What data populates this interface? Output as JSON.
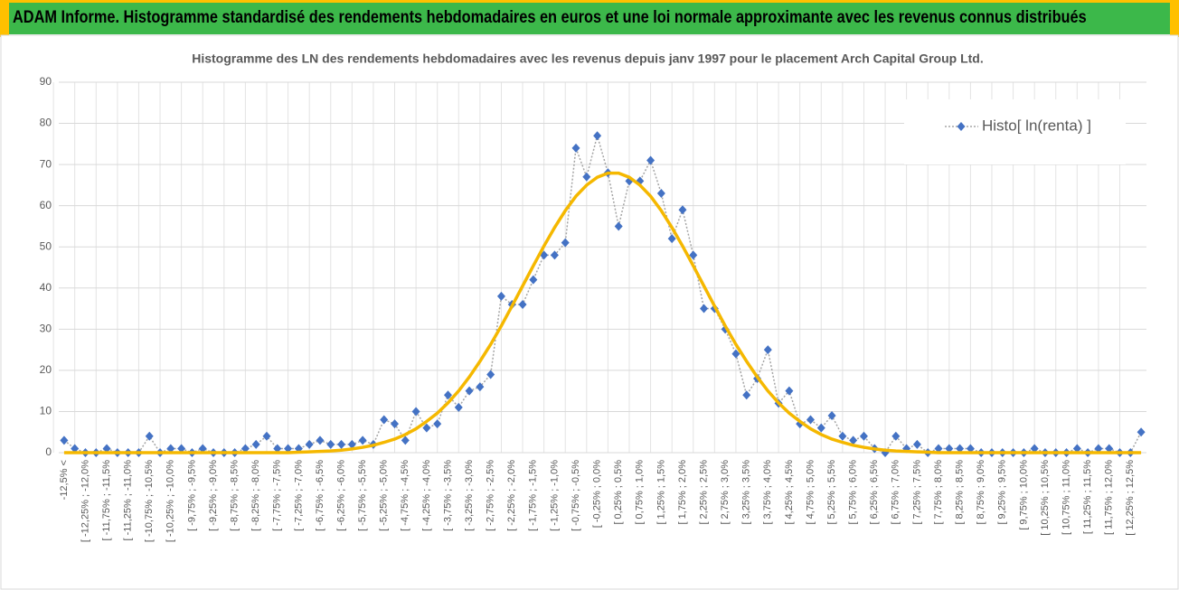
{
  "header": {
    "title": "ADAM Informe. Histogramme standardisé des rendements hebdomadaires en euros et une loi normale approximante avec les revenus connus distribués"
  },
  "chart_data": {
    "type": "line",
    "title": "Histogramme des LN des rendements hebdomadaires avec les revenus depuis janv 1997 pour le placement Arch Capital Group Ltd.",
    "categories": [
      "-12,5% <",
      null,
      "[ -12,25% ; -12,0%",
      null,
      "[ -11,75% ; -11,5%",
      null,
      "[ -11,25% ; -11,0%",
      null,
      "[ -10,75% ; -10,5%",
      null,
      "[ -10,25% ; -10,0%",
      null,
      "[ -9,75% ; -9,5%",
      null,
      "[ -9,25% ; -9,0%",
      null,
      "[ -8,75% ; -8,5%",
      null,
      "[ -8,25% ; -8,0%",
      null,
      "[ -7,75% ; -7,5%",
      null,
      "[ -7,25% ; -7,0%",
      null,
      "[ -6,75% ; -6,5%",
      null,
      "[ -6,25% ; -6,0%",
      null,
      "[ -5,75% ; -5,5%",
      null,
      "[ -5,25% ; -5,0%",
      null,
      "[ -4,75% ; -4,5%",
      null,
      "[ -4,25% ; -4,0%",
      null,
      "[ -3,75% ; -3,5%",
      null,
      "[ -3,25% ; -3,0%",
      null,
      "[ -2,75% ; -2,5%",
      null,
      "[ -2,25% ; -2,0%",
      null,
      "[ -1,75% ; -1,5%",
      null,
      "[ -1,25% ; -1,0%",
      null,
      "[ -0,75% ; -0,5%",
      null,
      "[ -0,25% ; 0,0%",
      null,
      "[ 0,25% ; 0,5%",
      null,
      "[ 0,75% ; 1,0%",
      null,
      "[ 1,25% ; 1,5%",
      null,
      "[ 1,75% ; 2,0%",
      null,
      "[ 2,25% ; 2,5%",
      null,
      "[ 2,75% ; 3,0%",
      null,
      "[ 3,25% ; 3,5%",
      null,
      "[ 3,75% ; 4,0%",
      null,
      "[ 4,25% ; 4,5%",
      null,
      "[ 4,75% ; 5,0%",
      null,
      "[ 5,25% ; 5,5%",
      null,
      "[ 5,75% ; 6,0%",
      null,
      "[ 6,25% ; 6,5%",
      null,
      "[ 6,75% ; 7,0%",
      null,
      "[ 7,25% ; 7,5%",
      null,
      "[ 7,75% ; 8,0%",
      null,
      "[ 8,25% ; 8,5%",
      null,
      "[ 8,75% ; 9,0%",
      null,
      "[ 9,25% ; 9,5%",
      null,
      "[ 9,75% ; 10,0%",
      null,
      "[ 10,25% ; 10,5%",
      null,
      "[ 10,75% ; 11,0%",
      null,
      "[ 11,25% ; 11,5%",
      null,
      "[ 11,75% ; 12,0%",
      null,
      "[ 12,25% ; 12,5%",
      null
    ],
    "series": [
      {
        "name": "Histo[ ln(renta) ]",
        "color": "#4472c4",
        "line_color": "#a5a5a5",
        "marker": "diamond",
        "values": [
          3,
          1,
          0,
          0,
          1,
          0,
          0,
          0,
          4,
          0,
          1,
          1,
          0,
          1,
          0,
          0,
          0,
          1,
          2,
          4,
          1,
          1,
          1,
          2,
          3,
          2,
          2,
          2,
          3,
          2,
          8,
          7,
          3,
          10,
          6,
          7,
          14,
          11,
          15,
          16,
          19,
          38,
          36,
          36,
          42,
          48,
          48,
          51,
          74,
          67,
          77,
          68,
          55,
          66,
          66,
          71,
          63,
          52,
          59,
          48,
          35,
          35,
          30,
          24,
          14,
          18,
          25,
          12,
          15,
          7,
          8,
          6,
          9,
          4,
          3,
          4,
          1,
          0,
          4,
          1,
          2,
          0,
          1,
          1,
          1,
          1,
          0,
          0,
          0,
          0,
          0,
          1,
          0,
          0,
          0,
          1,
          0,
          1,
          1,
          0,
          0,
          5
        ]
      },
      {
        "color": "#f5b800",
        "marker": "none",
        "values": [
          0,
          0,
          0,
          0,
          0,
          0,
          0,
          0,
          0,
          0,
          0,
          0,
          0,
          0,
          0,
          0,
          0,
          0,
          0,
          0,
          0,
          0,
          0.1,
          0.2,
          0.3,
          0.4,
          0.6,
          0.9,
          1.3,
          1.8,
          2.5,
          3.3,
          4.4,
          5.8,
          7.6,
          9.6,
          12.1,
          15.0,
          18.4,
          22.2,
          26.3,
          30.8,
          35.6,
          40.5,
          45.4,
          50.2,
          54.7,
          58.8,
          62.3,
          65.0,
          66.9,
          67.9,
          67.9,
          66.9,
          65.0,
          62.3,
          58.8,
          54.7,
          50.2,
          45.4,
          40.5,
          35.6,
          30.8,
          26.3,
          22.2,
          18.4,
          15.0,
          12.1,
          9.6,
          7.6,
          5.8,
          4.4,
          3.3,
          2.5,
          1.8,
          1.3,
          0.9,
          0.6,
          0.4,
          0.3,
          0.2,
          0.1,
          0,
          0,
          0,
          0,
          0,
          0,
          0,
          0,
          0,
          0,
          0,
          0,
          0,
          0,
          0,
          0,
          0,
          0,
          0,
          0
        ]
      }
    ],
    "ylim": [
      0,
      90
    ],
    "yticks": [
      0,
      10,
      20,
      30,
      40,
      50,
      60,
      70,
      80,
      90
    ],
    "grid": true,
    "legend": "upper right"
  }
}
